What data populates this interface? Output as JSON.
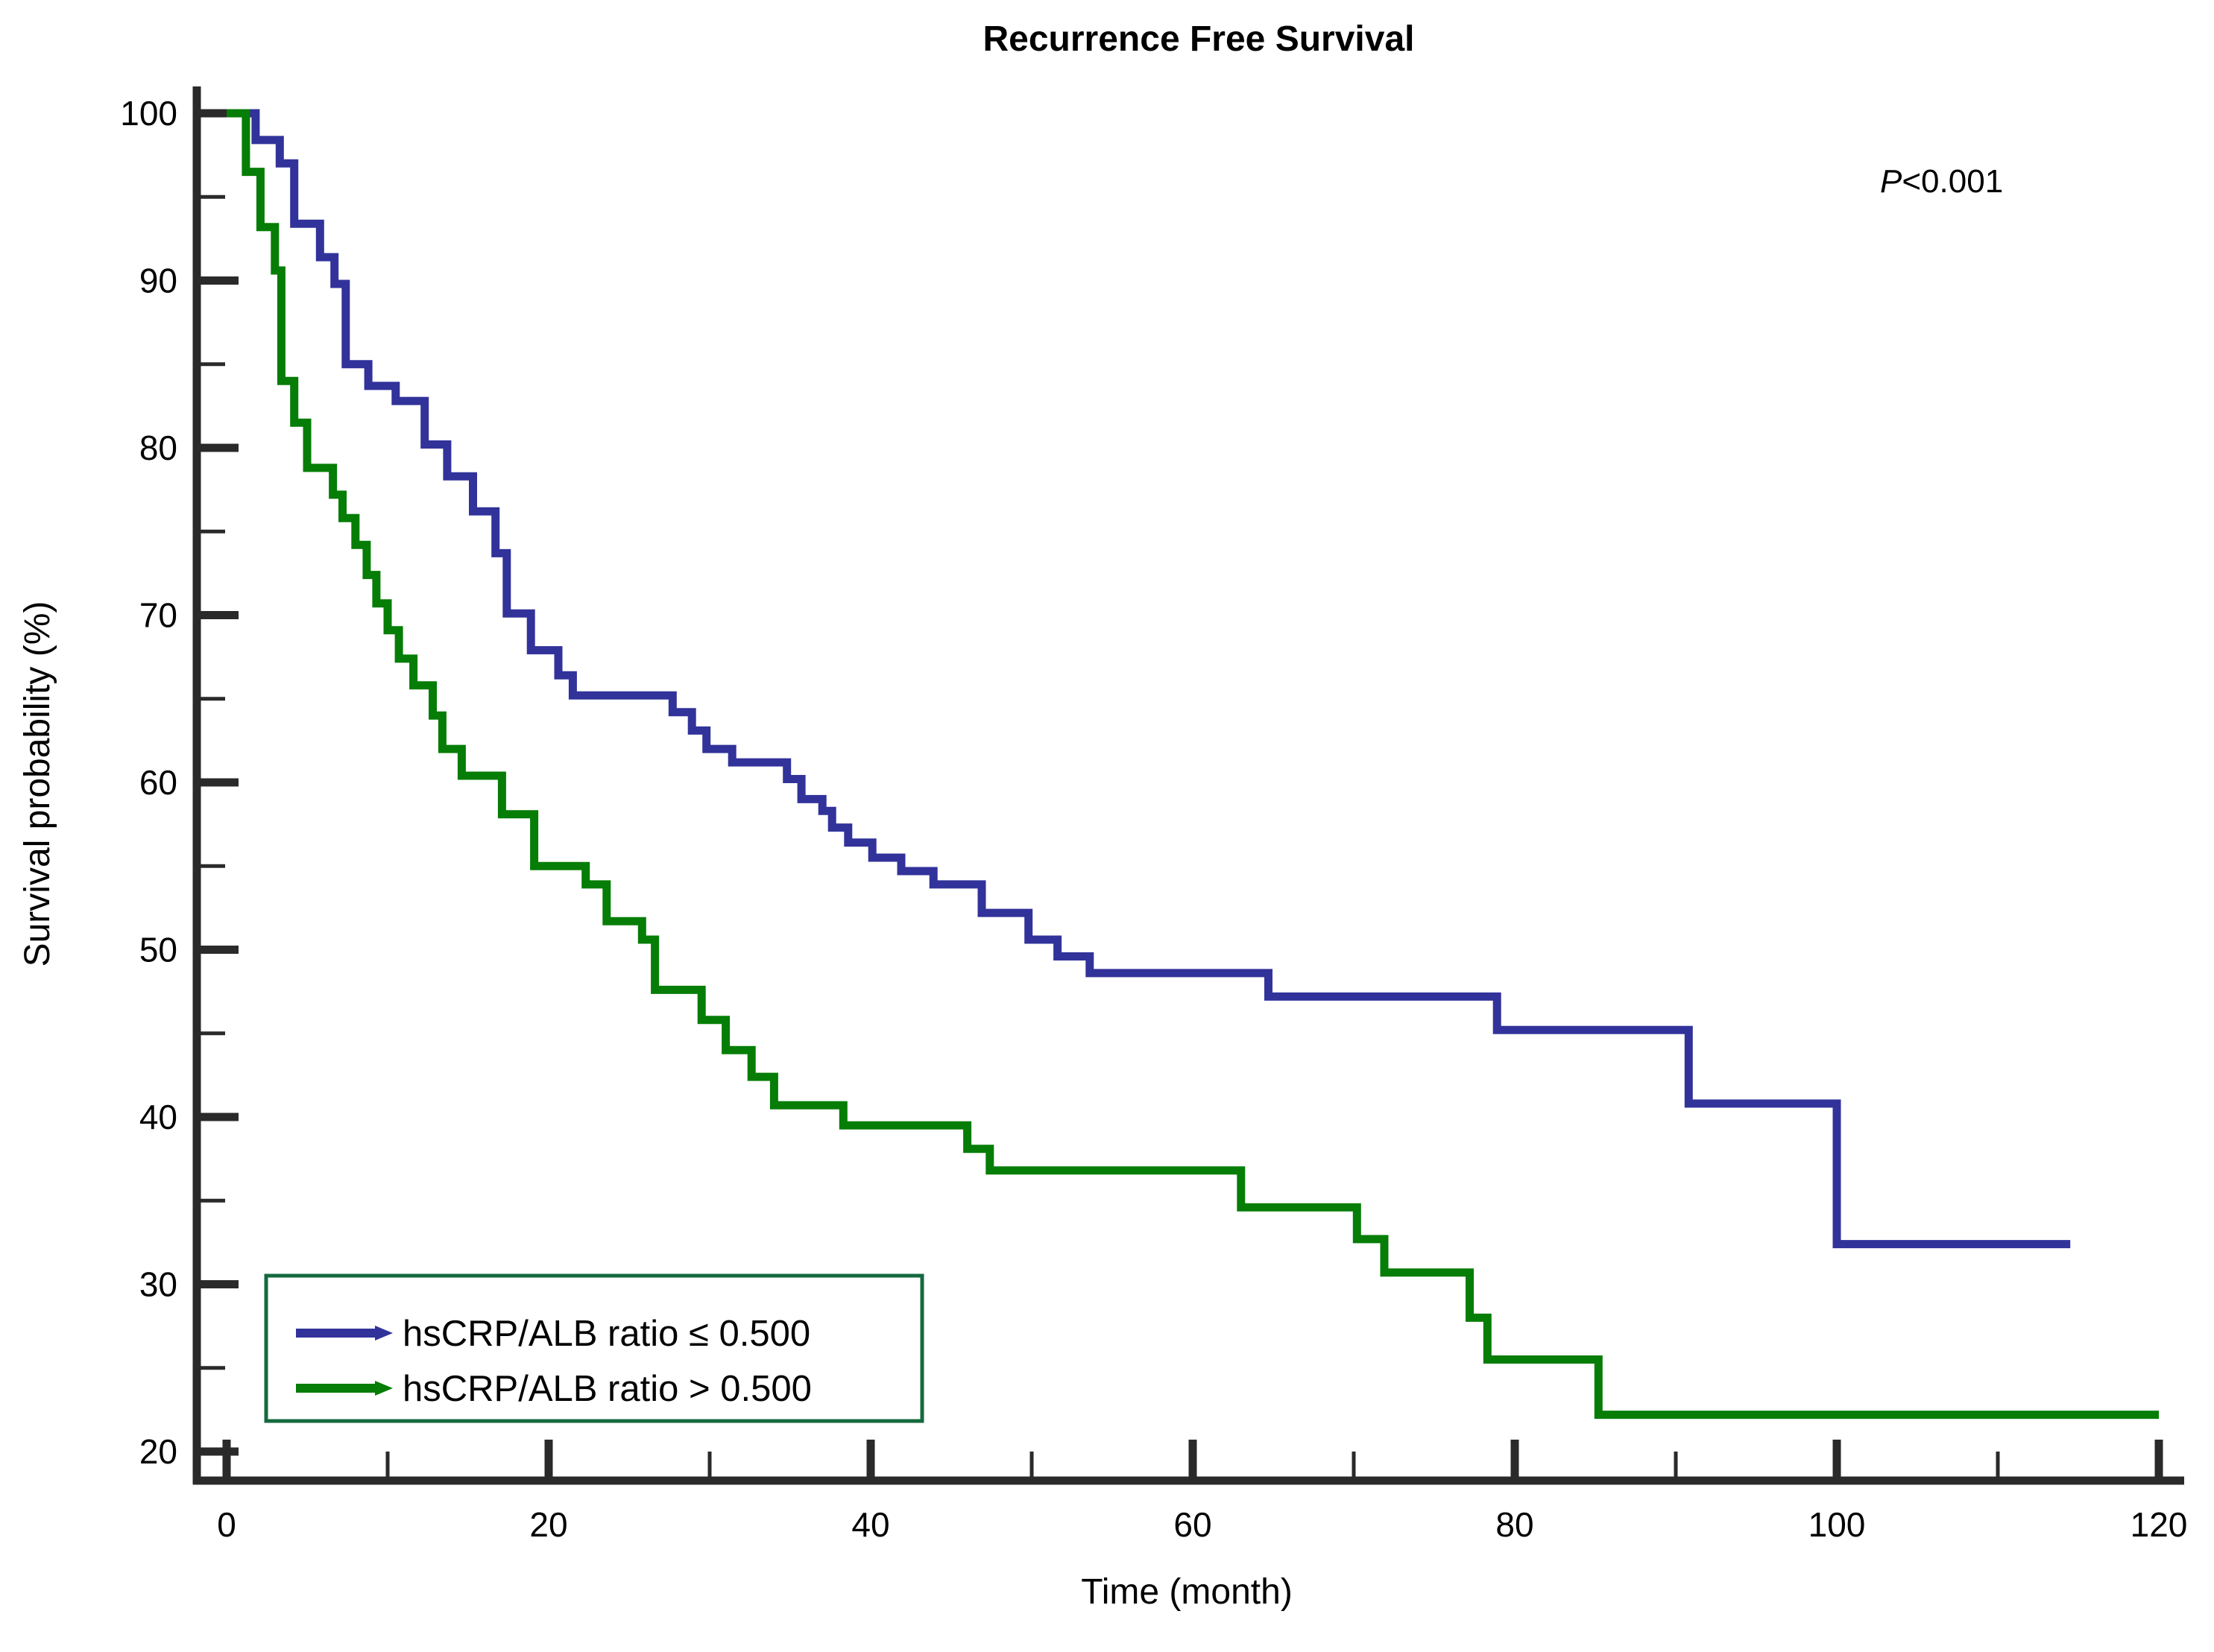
{
  "chart": {
    "title": "Recurrence Free Survival",
    "p_annotation": {
      "prefix": "P",
      "rest": "<0.001",
      "combined": "P<0.001"
    },
    "x_axis": {
      "label": "Time (month)",
      "min": 0,
      "max": 120,
      "major_ticks": [
        0,
        20,
        40,
        60,
        80,
        100,
        120
      ],
      "minor_ticks": [
        10,
        30,
        50,
        70,
        90,
        110
      ]
    },
    "y_axis": {
      "label": "Survival probability (%)",
      "min": 20,
      "max": 100,
      "major_ticks": [
        100,
        90,
        80,
        70,
        60,
        50,
        40,
        30,
        20
      ],
      "minor_ticks": [
        95,
        85,
        75,
        65,
        55,
        45,
        35,
        25
      ]
    },
    "legend": {
      "border_color": "#15693f",
      "items": [
        {
          "label": "hsCRP/ALB ratio ≤ 0.500",
          "color": "#32329b"
        },
        {
          "label": "hsCRP/ALB ratio > 0.500",
          "color": "#067d06"
        }
      ]
    }
  },
  "chart_data": {
    "type": "line",
    "subtype": "kaplan_meier_step",
    "title": "Recurrence Free Survival",
    "xlabel": "Time (month)",
    "ylabel": "Survival probability (%)",
    "xlim": [
      0,
      120
    ],
    "ylim": [
      20,
      100
    ],
    "grid": false,
    "legend_position": "lower-left",
    "annotation": "P<0.001",
    "series": [
      {
        "name": "hsCRP/ALB ratio ≤ 0.500",
        "color": "#32329b",
        "steps_time_vs_percent": [
          [
            0,
            100
          ],
          [
            1.8,
            98.4
          ],
          [
            3.3,
            97.0
          ],
          [
            4.2,
            93.4
          ],
          [
            5.8,
            91.4
          ],
          [
            6.7,
            89.8
          ],
          [
            7.4,
            85.0
          ],
          [
            8.8,
            83.7
          ],
          [
            10.5,
            82.8
          ],
          [
            12.3,
            80.2
          ],
          [
            13.7,
            78.3
          ],
          [
            15.3,
            76.2
          ],
          [
            16.7,
            73.7
          ],
          [
            17.4,
            70.1
          ],
          [
            18.9,
            67.9
          ],
          [
            20.6,
            66.4
          ],
          [
            21.5,
            65.2
          ],
          [
            27.7,
            64.2
          ],
          [
            28.9,
            63.1
          ],
          [
            29.8,
            62.0
          ],
          [
            31.4,
            61.2
          ],
          [
            34.8,
            60.2
          ],
          [
            35.7,
            59.0
          ],
          [
            37.0,
            58.3
          ],
          [
            37.6,
            57.3
          ],
          [
            38.6,
            56.4
          ],
          [
            40.1,
            55.5
          ],
          [
            41.9,
            54.7
          ],
          [
            43.9,
            53.9
          ],
          [
            46.9,
            52.2
          ],
          [
            49.8,
            50.6
          ],
          [
            51.6,
            49.6
          ],
          [
            53.6,
            48.6
          ],
          [
            64.7,
            47.2
          ],
          [
            78.9,
            45.2
          ],
          [
            90.8,
            40.8
          ],
          [
            100.0,
            32.4
          ]
        ],
        "end_time": 114.5
      },
      {
        "name": "hsCRP/ALB ratio > 0.500",
        "color": "#067d06",
        "steps_time_vs_percent": [
          [
            0,
            100
          ],
          [
            1.2,
            96.5
          ],
          [
            2.1,
            93.2
          ],
          [
            3.0,
            90.6
          ],
          [
            3.4,
            84.0
          ],
          [
            4.2,
            81.5
          ],
          [
            5.0,
            78.8
          ],
          [
            6.6,
            77.2
          ],
          [
            7.2,
            75.8
          ],
          [
            8.0,
            74.2
          ],
          [
            8.7,
            72.4
          ],
          [
            9.3,
            70.7
          ],
          [
            10.0,
            69.1
          ],
          [
            10.7,
            67.4
          ],
          [
            11.6,
            65.8
          ],
          [
            12.8,
            64.0
          ],
          [
            13.4,
            62.0
          ],
          [
            14.6,
            60.4
          ],
          [
            17.1,
            58.1
          ],
          [
            19.1,
            55.0
          ],
          [
            22.3,
            53.9
          ],
          [
            23.6,
            51.7
          ],
          [
            25.8,
            50.6
          ],
          [
            26.6,
            47.6
          ],
          [
            29.5,
            45.8
          ],
          [
            31.0,
            44.0
          ],
          [
            32.6,
            42.4
          ],
          [
            34.0,
            40.7
          ],
          [
            38.3,
            39.5
          ],
          [
            46.0,
            38.1
          ],
          [
            47.4,
            36.8
          ],
          [
            63.0,
            34.6
          ],
          [
            70.2,
            32.7
          ],
          [
            71.9,
            30.7
          ],
          [
            77.2,
            28.0
          ],
          [
            78.3,
            25.5
          ],
          [
            85.2,
            22.2
          ]
        ],
        "end_time": 120
      }
    ]
  }
}
